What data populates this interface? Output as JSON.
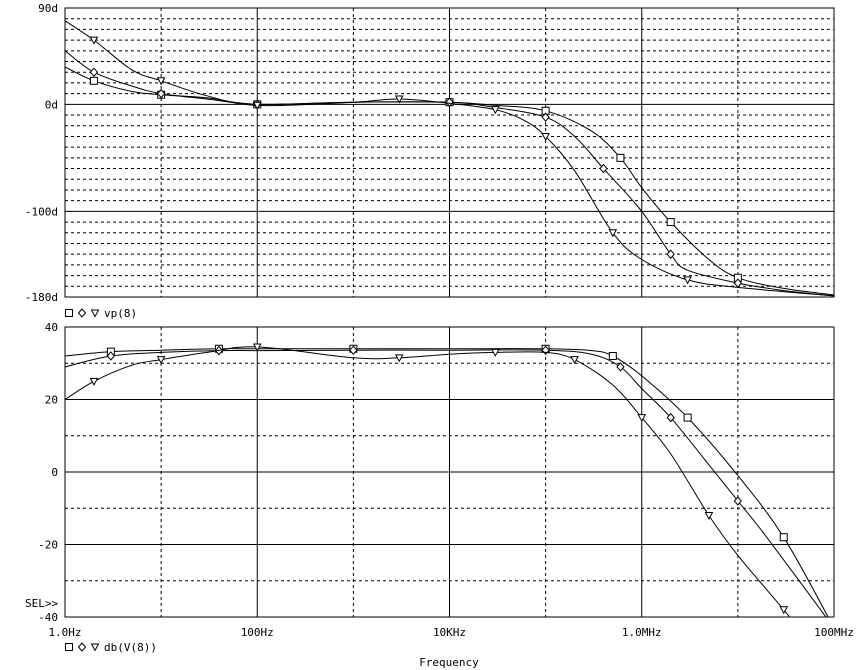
{
  "chart_data": [
    {
      "type": "line",
      "xscale": "log",
      "xlim": [
        1,
        100000000
      ],
      "ylim": [
        -180,
        90
      ],
      "yticks": [
        90,
        0,
        -100,
        -180
      ],
      "ytick_labels": [
        "90d",
        "0d",
        "-100d",
        "-180d"
      ],
      "xtick_labels": [],
      "legend_text": "vp(8)",
      "legend_markers": [
        "square",
        "diamond",
        "triangle"
      ],
      "series": [
        {
          "marker": "square",
          "x": [
            1,
            2,
            5,
            10,
            30,
            100,
            1000,
            10000,
            30000,
            100000,
            300000,
            600000,
            1000000,
            2000000,
            5000000,
            10000000,
            30000000,
            100000000
          ],
          "values": [
            35,
            22,
            12,
            9,
            6,
            0,
            2,
            2,
            -1,
            -6,
            -25,
            -50,
            -78,
            -110,
            -145,
            -162,
            -172,
            -178
          ]
        },
        {
          "marker": "diamond",
          "x": [
            1,
            2,
            5,
            10,
            30,
            100,
            1000,
            10000,
            30000,
            100000,
            200000,
            400000,
            1000000,
            2000000,
            3000000,
            10000000,
            30000000,
            100000000
          ],
          "values": [
            50,
            30,
            17,
            10,
            5,
            0,
            2,
            2,
            -3,
            -12,
            -30,
            -60,
            -100,
            -140,
            -155,
            -167,
            -174,
            -179
          ]
        },
        {
          "marker": "triangle",
          "x": [
            1,
            2,
            5,
            10,
            30,
            100,
            1000,
            3000,
            10000,
            30000,
            60000,
            100000,
            200000,
            500000,
            1000000,
            3000000,
            10000000,
            100000000
          ],
          "values": [
            78,
            60,
            32,
            22,
            8,
            -1,
            2,
            5,
            1,
            -5,
            -15,
            -30,
            -62,
            -120,
            -145,
            -164,
            -171,
            -179
          ]
        }
      ]
    },
    {
      "type": "line",
      "xscale": "log",
      "xlim": [
        1,
        100000000
      ],
      "ylim": [
        -40,
        40
      ],
      "yticks": [
        40,
        20,
        0,
        -20,
        -40
      ],
      "ytick_labels": [
        "40",
        "20",
        "0",
        "-20",
        "-40"
      ],
      "xtick_labels": [
        "1.0Hz",
        "100Hz",
        "10KHz",
        "1.0MHz",
        "100MHz"
      ],
      "xtick_values": [
        1,
        100,
        10000,
        1000000,
        100000000
      ],
      "xlabel": "Frequency",
      "legend_text": "db(V(8))",
      "legend_markers": [
        "square",
        "diamond",
        "triangle"
      ],
      "series": [
        {
          "marker": "square",
          "x": [
            1,
            3,
            10,
            40,
            100,
            1000,
            10000,
            100000,
            300000,
            500000,
            1000000,
            3000000,
            10000000,
            30000000,
            100000000
          ],
          "values": [
            32,
            33.2,
            33.6,
            34,
            34,
            34,
            34,
            34,
            33.5,
            32,
            26.5,
            15,
            -1,
            -18,
            -43
          ]
        },
        {
          "marker": "diamond",
          "x": [
            1,
            3,
            10,
            40,
            100,
            1000,
            10000,
            100000,
            300000,
            600000,
            1000000,
            2000000,
            5000000,
            10000000,
            20000000,
            100000000
          ],
          "values": [
            29,
            32,
            33,
            33.5,
            33.5,
            33.6,
            33.6,
            33.6,
            32.5,
            29,
            23,
            15,
            2,
            -8,
            -18,
            -43
          ]
        },
        {
          "marker": "triangle",
          "x": [
            1,
            2,
            5,
            10,
            30,
            100,
            1000,
            3000,
            10000,
            30000,
            100000,
            200000,
            500000,
            1000000,
            2000000,
            5000000,
            10000000,
            30000000,
            100000000
          ],
          "values": [
            20,
            25,
            29.5,
            31,
            33,
            34.5,
            31.5,
            31.5,
            32.5,
            33,
            33,
            31,
            24,
            15,
            5,
            -12,
            -23,
            -38,
            -55
          ]
        }
      ]
    }
  ],
  "sel_label": "SEL>>"
}
